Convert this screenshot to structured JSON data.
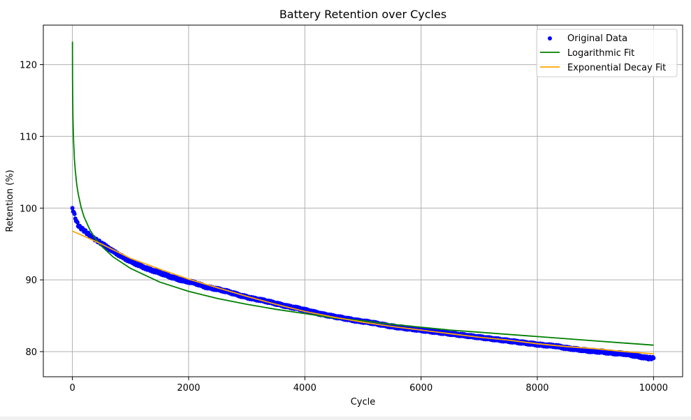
{
  "chart_data": {
    "type": "scatter",
    "title": "Battery Retention over Cycles",
    "xlabel": "Cycle",
    "ylabel": "Retention (%)",
    "xlim": [
      -500,
      10500
    ],
    "ylim": [
      76.5,
      125.5
    ],
    "xticks": [
      0,
      2000,
      4000,
      6000,
      8000,
      10000
    ],
    "yticks": [
      80,
      90,
      100,
      110,
      120
    ],
    "grid": true,
    "legend_position": "top-right",
    "colors": {
      "original": "#0000ff",
      "log_fit": "#008000",
      "exp_fit": "#ffa500",
      "grid": "#b0b0b0"
    },
    "series": [
      {
        "name": "Original Data",
        "kind": "scatter",
        "x": [
          0,
          25,
          50,
          100,
          150,
          200,
          300,
          400,
          500,
          700,
          900,
          1100,
          1300,
          1500,
          1700,
          1900,
          2100,
          2300,
          2500,
          2700,
          2900,
          3100,
          3300,
          3500,
          3700,
          3900,
          4100,
          4300,
          4500,
          4700,
          4900,
          5100,
          5300,
          5500,
          5700,
          5900,
          6100,
          6300,
          6500,
          6700,
          6900,
          7100,
          7300,
          7500,
          7700,
          7900,
          8100,
          8300,
          8500,
          8700,
          8900,
          9100,
          9300,
          9500,
          9700,
          9900,
          10000
        ],
        "y": [
          100.0,
          99.4,
          98.6,
          97.6,
          97.2,
          96.9,
          96.2,
          95.6,
          95.1,
          94.0,
          93.0,
          92.2,
          91.5,
          91.0,
          90.4,
          89.9,
          89.6,
          89.0,
          88.7,
          88.3,
          87.8,
          87.4,
          87.1,
          86.7,
          86.3,
          86.0,
          85.6,
          85.2,
          84.9,
          84.6,
          84.3,
          84.1,
          83.8,
          83.5,
          83.3,
          83.1,
          82.9,
          82.7,
          82.5,
          82.3,
          82.1,
          81.9,
          81.7,
          81.5,
          81.3,
          81.1,
          80.9,
          80.8,
          80.5,
          80.3,
          80.1,
          80.0,
          79.8,
          79.7,
          79.4,
          79.1,
          79.1
        ]
      },
      {
        "name": "Logarithmic Fit",
        "kind": "line",
        "x": [
          1,
          3,
          6,
          10,
          20,
          35,
          50,
          75,
          100,
          150,
          200,
          300,
          400,
          500,
          700,
          1000,
          1500,
          2000,
          2500,
          3000,
          3500,
          4000,
          4500,
          5000,
          5500,
          6000,
          6500,
          7000,
          7500,
          8000,
          8500,
          9000,
          9500,
          10000
        ],
        "y": [
          123.2,
          118.1,
          115.0,
          112.6,
          109.4,
          106.8,
          105.2,
          103.3,
          102.0,
          100.1,
          98.8,
          97.0,
          95.7,
          94.7,
          93.2,
          91.6,
          89.7,
          88.4,
          87.4,
          86.6,
          85.9,
          85.3,
          84.7,
          84.3,
          83.8,
          83.4,
          83.0,
          82.7,
          82.4,
          82.1,
          81.8,
          81.5,
          81.2,
          80.9
        ]
      },
      {
        "name": "Exponential Decay Fit",
        "kind": "line",
        "x": [
          0,
          500,
          1000,
          1500,
          2000,
          2500,
          3000,
          3500,
          4000,
          4500,
          5000,
          5500,
          6000,
          6500,
          7000,
          7500,
          8000,
          8500,
          9000,
          9500,
          10000
        ],
        "y": [
          96.8,
          95.0,
          93.0,
          91.5,
          90.1,
          88.9,
          87.7,
          86.6,
          85.6,
          84.8,
          84.1,
          83.5,
          83.0,
          82.5,
          82.0,
          81.6,
          81.1,
          80.7,
          80.4,
          80.0,
          79.7
        ]
      }
    ]
  }
}
